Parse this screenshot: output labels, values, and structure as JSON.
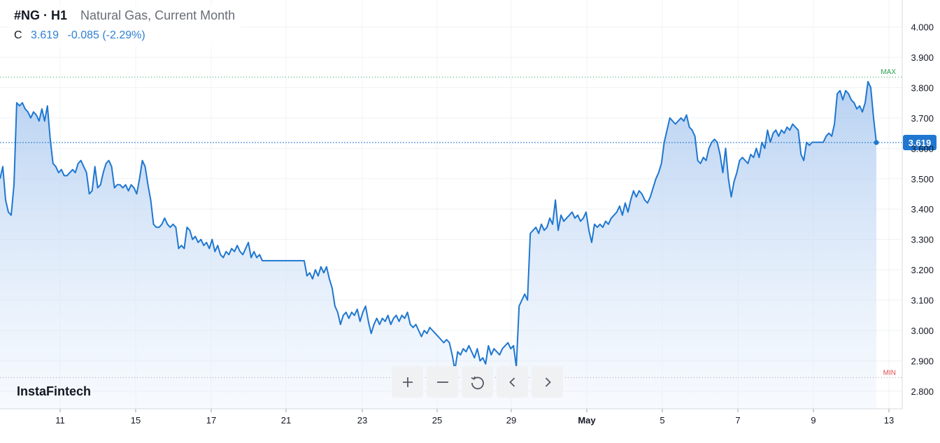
{
  "legend": {
    "symbol": "#NG · H1",
    "description": "Natural Gas, Current Month",
    "close_label": "C",
    "close": "3.619",
    "change": "-0.085 (-2.29%)"
  },
  "brand": "InstaFintech",
  "markers": {
    "max": "MAX",
    "min": "MIN"
  },
  "current_price_label": "3.619",
  "controls": [
    "zoom-in",
    "zoom-out",
    "reset",
    "scroll-left",
    "scroll-right"
  ],
  "colors": {
    "line": "#1f77d0",
    "fill_top": "#a9c8ef",
    "max": "#2e9e55",
    "min": "#e04b4b",
    "price_tag": "#1f77d0"
  },
  "chart_data": {
    "type": "area",
    "ylim": [
      2.75,
      4.05
    ],
    "y_ticks": [
      "4.000",
      "3.900",
      "3.800",
      "3.700",
      "3.600",
      "3.500",
      "3.400",
      "3.300",
      "3.200",
      "3.100",
      "3.000",
      "2.900",
      "2.800"
    ],
    "x_ticks": [
      "11",
      "15",
      "17",
      "21",
      "23",
      "25",
      "29",
      "May",
      "5",
      "7",
      "9",
      "13"
    ],
    "max_level": 3.835,
    "min_level": 2.845,
    "last_value": 3.619,
    "series": [
      {
        "values": [
          3.5,
          3.54,
          3.43,
          3.39,
          3.38,
          3.48,
          3.75,
          3.74,
          3.75,
          3.73,
          3.72,
          3.7,
          3.72,
          3.71,
          3.69,
          3.73,
          3.69,
          3.74,
          3.63,
          3.55,
          3.54,
          3.52,
          3.53,
          3.51,
          3.51,
          3.52,
          3.53,
          3.52,
          3.55,
          3.56,
          3.54,
          3.52,
          3.45,
          3.46,
          3.54,
          3.47,
          3.48,
          3.52,
          3.55,
          3.56,
          3.54,
          3.47,
          3.48,
          3.48,
          3.47,
          3.48,
          3.46,
          3.48,
          3.47,
          3.45,
          3.5,
          3.56,
          3.54,
          3.48,
          3.43,
          3.35,
          3.34,
          3.34,
          3.35,
          3.37,
          3.35,
          3.34,
          3.35,
          3.34,
          3.27,
          3.28,
          3.27,
          3.34,
          3.33,
          3.3,
          3.31,
          3.29,
          3.3,
          3.28,
          3.29,
          3.27,
          3.3,
          3.26,
          3.28,
          3.25,
          3.24,
          3.26,
          3.25,
          3.27,
          3.26,
          3.28,
          3.26,
          3.25,
          3.27,
          3.29,
          3.24,
          3.26,
          3.24,
          3.25,
          3.23,
          3.23,
          3.23,
          3.23,
          3.23,
          3.23,
          3.23,
          3.23,
          3.23,
          3.23,
          3.23,
          3.23,
          3.23,
          3.23,
          3.23,
          3.23,
          3.18,
          3.19,
          3.17,
          3.2,
          3.18,
          3.21,
          3.19,
          3.21,
          3.17,
          3.14,
          3.08,
          3.06,
          3.02,
          3.05,
          3.06,
          3.04,
          3.06,
          3.05,
          3.07,
          3.03,
          3.06,
          3.08,
          3.03,
          2.99,
          3.02,
          3.04,
          3.02,
          3.04,
          3.03,
          3.05,
          3.02,
          3.04,
          3.05,
          3.03,
          3.05,
          3.04,
          3.06,
          3.02,
          3.01,
          3.02,
          3.0,
          2.98,
          3.0,
          2.99,
          3.01,
          3.0,
          2.99,
          2.98,
          2.97,
          2.96,
          2.97,
          2.96,
          2.92,
          2.87,
          2.93,
          2.92,
          2.94,
          2.93,
          2.95,
          2.93,
          2.91,
          2.94,
          2.9,
          2.91,
          2.89,
          2.95,
          2.92,
          2.94,
          2.93,
          2.92,
          2.94,
          2.95,
          2.96,
          2.94,
          2.95,
          2.88,
          3.08,
          3.1,
          3.12,
          3.1,
          3.32,
          3.33,
          3.34,
          3.32,
          3.35,
          3.33,
          3.34,
          3.37,
          3.35,
          3.43,
          3.33,
          3.38,
          3.36,
          3.37,
          3.38,
          3.39,
          3.37,
          3.38,
          3.36,
          3.37,
          3.39,
          3.33,
          3.29,
          3.35,
          3.34,
          3.35,
          3.34,
          3.36,
          3.35,
          3.37,
          3.38,
          3.39,
          3.41,
          3.38,
          3.42,
          3.39,
          3.43,
          3.46,
          3.44,
          3.46,
          3.45,
          3.43,
          3.42,
          3.44,
          3.47,
          3.5,
          3.52,
          3.55,
          3.62,
          3.66,
          3.7,
          3.69,
          3.68,
          3.69,
          3.7,
          3.69,
          3.71,
          3.67,
          3.66,
          3.64,
          3.56,
          3.55,
          3.57,
          3.56,
          3.6,
          3.62,
          3.63,
          3.62,
          3.58,
          3.52,
          3.6,
          3.5,
          3.44,
          3.49,
          3.52,
          3.56,
          3.57,
          3.56,
          3.55,
          3.58,
          3.57,
          3.6,
          3.57,
          3.62,
          3.6,
          3.66,
          3.62,
          3.65,
          3.66,
          3.64,
          3.66,
          3.65,
          3.67,
          3.66,
          3.68,
          3.67,
          3.66,
          3.58,
          3.56,
          3.62,
          3.61,
          3.62,
          3.62,
          3.62,
          3.62,
          3.62,
          3.64,
          3.65,
          3.64,
          3.68,
          3.78,
          3.79,
          3.76,
          3.79,
          3.78,
          3.76,
          3.75,
          3.73,
          3.74,
          3.72,
          3.75,
          3.82,
          3.8,
          3.7,
          3.619
        ]
      }
    ]
  }
}
